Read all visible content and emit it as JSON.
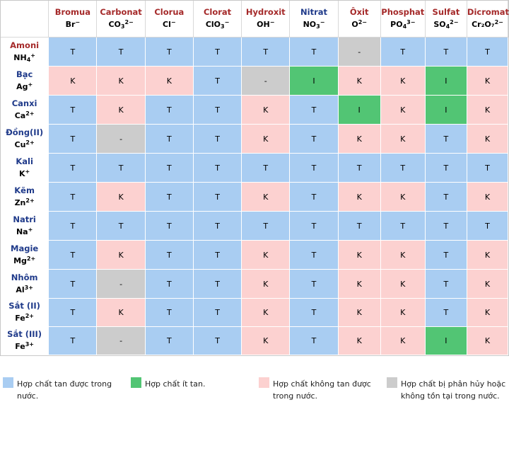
{
  "anions": [
    {
      "name": "Bromua",
      "base": "Br",
      "sub": "",
      "sup": "−",
      "color": "red"
    },
    {
      "name": "Carbonat",
      "base": "CO",
      "sub": "3",
      "sup": "2−",
      "color": "red"
    },
    {
      "name": "Clorua",
      "base": "Cl",
      "sub": "",
      "sup": "−",
      "color": "red"
    },
    {
      "name": "Clorat",
      "base": "ClO",
      "sub": "3",
      "sup": "−",
      "color": "red"
    },
    {
      "name": "Hydroxit",
      "base": "OH",
      "sub": "",
      "sup": "−",
      "color": "red"
    },
    {
      "name": "Nitrat",
      "base": "NO",
      "sub": "3",
      "sup": "−",
      "color": "blue"
    },
    {
      "name": "Ôxit",
      "base": "O",
      "sub": "",
      "sup": "2−",
      "color": "red"
    },
    {
      "name": "Phosphat",
      "base": "PO",
      "sub": "4",
      "sup": "3−",
      "color": "red"
    },
    {
      "name": "Sulfat",
      "base": "SO",
      "sub": "4",
      "sup": "2−",
      "color": "red"
    },
    {
      "name": "Dicromat",
      "base": "Cr₂O₇",
      "sub": "",
      "sup": "2−",
      "color": "red"
    }
  ],
  "rows": [
    {
      "name": "Amoni",
      "base": "NH",
      "sub": "4",
      "sup": "+",
      "color": "red",
      "cells": [
        "T",
        "T",
        "T",
        "T",
        "T",
        "T",
        "-",
        "T",
        "T",
        "T"
      ]
    },
    {
      "name": "Bạc",
      "base": "Ag",
      "sub": "",
      "sup": "+",
      "color": "blue",
      "cells": [
        "K",
        "K",
        "K",
        "T",
        "-",
        "I",
        "K",
        "K",
        "I",
        "K"
      ]
    },
    {
      "name": "Canxi",
      "base": "Ca",
      "sub": "",
      "sup": "2+",
      "color": "blue",
      "cells": [
        "T",
        "K",
        "T",
        "T",
        "K",
        "T",
        "I",
        "K",
        "I",
        "K"
      ]
    },
    {
      "name": "Đồng(II)",
      "base": "Cu",
      "sub": "",
      "sup": "2+",
      "color": "blue",
      "cells": [
        "T",
        "-",
        "T",
        "T",
        "K",
        "T",
        "K",
        "K",
        "T",
        "K"
      ]
    },
    {
      "name": "Kali",
      "base": "K",
      "sub": "",
      "sup": "+",
      "color": "blue",
      "cells": [
        "T",
        "T",
        "T",
        "T",
        "T",
        "T",
        "T",
        "T",
        "T",
        "T"
      ]
    },
    {
      "name": "Kẽm",
      "base": "Zn",
      "sub": "",
      "sup": "2+",
      "color": "blue",
      "cells": [
        "T",
        "K",
        "T",
        "T",
        "K",
        "T",
        "K",
        "K",
        "T",
        "K"
      ]
    },
    {
      "name": "Natri",
      "base": "Na",
      "sub": "",
      "sup": "+",
      "color": "blue",
      "cells": [
        "T",
        "T",
        "T",
        "T",
        "T",
        "T",
        "T",
        "T",
        "T",
        "T"
      ]
    },
    {
      "name": "Magie",
      "base": "Mg",
      "sub": "",
      "sup": "2+",
      "color": "blue",
      "cells": [
        "T",
        "K",
        "T",
        "T",
        "K",
        "T",
        "K",
        "K",
        "T",
        "K"
      ]
    },
    {
      "name": "Nhôm",
      "base": "Al",
      "sub": "",
      "sup": "3+",
      "color": "blue",
      "cells": [
        "T",
        "-",
        "T",
        "T",
        "K",
        "T",
        "K",
        "K",
        "T",
        "K"
      ]
    },
    {
      "name": "Sắt (II)",
      "base": "Fe",
      "sub": "",
      "sup": "2+",
      "color": "blue",
      "cells": [
        "T",
        "K",
        "T",
        "T",
        "K",
        "T",
        "K",
        "K",
        "T",
        "K"
      ]
    },
    {
      "name": "Sắt (III)",
      "base": "Fe",
      "sub": "",
      "sup": "3+",
      "color": "blue",
      "cells": [
        "T",
        "-",
        "T",
        "T",
        "K",
        "T",
        "K",
        "K",
        "I",
        "K"
      ]
    }
  ],
  "legend": [
    {
      "key": "T",
      "color": "#a9cdf2",
      "text": "Hợp chất tan được trong nước."
    },
    {
      "key": "I",
      "color": "#52c574",
      "text": "Hợp chất ít tan."
    },
    {
      "key": "K",
      "color": "#fcd1d0",
      "text": "Hợp chất không tan được trong nước."
    },
    {
      "key": "-",
      "color": "#cccccc",
      "text": "Hợp chất bị phân hủy hoặc không tồn tại trong nước."
    }
  ]
}
